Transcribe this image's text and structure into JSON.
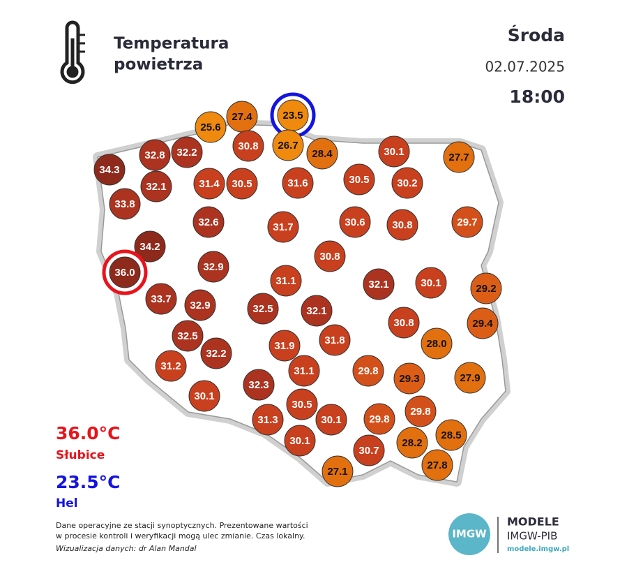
{
  "header": {
    "title_lines": [
      "Temperatura",
      "powietrza"
    ],
    "day": "Środa",
    "date": "02.07.2025",
    "time": "18:00"
  },
  "stations": [
    {
      "value": "23.5"
    },
    {
      "value": "27.4"
    },
    {
      "value": "25.6"
    },
    {
      "value": "32.8"
    },
    {
      "value": "32.2"
    },
    {
      "value": "30.8"
    },
    {
      "value": "26.7"
    },
    {
      "value": "28.4"
    },
    {
      "value": "30.1"
    },
    {
      "value": "27.7"
    },
    {
      "value": "34.3"
    },
    {
      "value": "32.1"
    },
    {
      "value": "31.4"
    },
    {
      "value": "30.5"
    },
    {
      "value": "31.6"
    },
    {
      "value": "30.5"
    },
    {
      "value": "30.2"
    },
    {
      "value": "33.8"
    },
    {
      "value": "32.6"
    },
    {
      "value": "31.7"
    },
    {
      "value": "30.6"
    },
    {
      "value": "30.8"
    },
    {
      "value": "29.7"
    },
    {
      "value": "34.2"
    },
    {
      "value": "36.0"
    },
    {
      "value": "32.9"
    },
    {
      "value": "30.8"
    },
    {
      "value": "31.1"
    },
    {
      "value": "32.1"
    },
    {
      "value": "30.1"
    },
    {
      "value": "29.2"
    },
    {
      "value": "33.7"
    },
    {
      "value": "32.9"
    },
    {
      "value": "32.5"
    },
    {
      "value": "32.1"
    },
    {
      "value": "30.8"
    },
    {
      "value": "29.4"
    },
    {
      "value": "32.5"
    },
    {
      "value": "31.9"
    },
    {
      "value": "31.8"
    },
    {
      "value": "28.0"
    },
    {
      "value": "32.2"
    },
    {
      "value": "31.2"
    },
    {
      "value": "31.1"
    },
    {
      "value": "29.8"
    },
    {
      "value": "29.3"
    },
    {
      "value": "27.9"
    },
    {
      "value": "32.3"
    },
    {
      "value": "30.1"
    },
    {
      "value": "30.5"
    },
    {
      "value": "29.8"
    },
    {
      "value": "31.3"
    },
    {
      "value": "30.1"
    },
    {
      "value": "29.8"
    },
    {
      "value": "28.5"
    },
    {
      "value": "28.2"
    },
    {
      "value": "30.1"
    },
    {
      "value": "30.7"
    },
    {
      "value": "27.8"
    },
    {
      "value": "27.1"
    }
  ],
  "max": {
    "value": "36.0°C",
    "station": "Słubice"
  },
  "min": {
    "value": "23.5°C",
    "station": "Hel"
  },
  "footer": {
    "lines": [
      "Dane operacyjne ze stacji synoptycznych. Prezentowane wartości",
      "w procesie kontroli i weryfikacji mogą ulec zmianie. Czas lokalny."
    ],
    "credit": "Wizualizacja danych: dr Alan Mandal"
  },
  "logo": {
    "badge": "IMGW",
    "title": "MODELE",
    "subtitle": "IMGW-PIB",
    "url": "modele.imgw.pl"
  }
}
